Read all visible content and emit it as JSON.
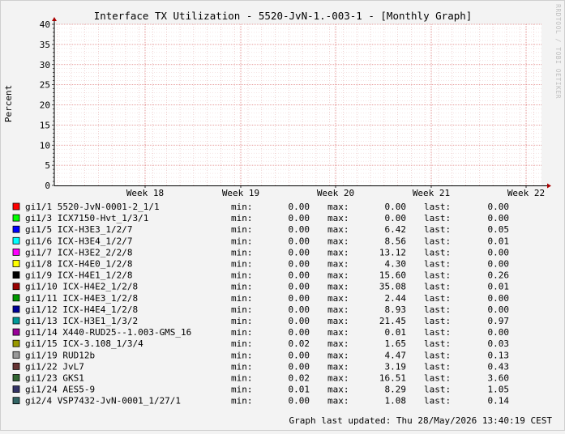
{
  "chart_data": {
    "type": "line",
    "title": "Interface TX Utilization - 5520-JvN-1.-003-1 - [Monthly Graph]",
    "ylabel": "Percent",
    "ylim": [
      0,
      40
    ],
    "yticks": [
      0,
      5,
      10,
      15,
      20,
      25,
      30,
      35,
      40
    ],
    "x_ticks": [
      "Week 18",
      "Week 19",
      "Week 20",
      "Week 21",
      "Week 22"
    ],
    "grid": true,
    "watermark": "RRDTOOL / TOBI OETIKER",
    "updated": "Graph last updated: Thu 28/May/2026 13:40:19 CEST",
    "stat_labels": {
      "min": "min:",
      "max": "max:",
      "last": "last:"
    },
    "series": [
      {
        "name": "gi1/1  5520-JvN-0001-2_1/1",
        "color": "#ff0000",
        "min": "0.00",
        "max": "0.00",
        "last": "0.00"
      },
      {
        "name": "gi1/3  ICX7150-Hvt_1/3/1",
        "color": "#00ff00",
        "min": "0.00",
        "max": "0.00",
        "last": "0.00"
      },
      {
        "name": "gi1/5  ICX-H3E3_1/2/7",
        "color": "#0000ff",
        "min": "0.00",
        "max": "6.42",
        "last": "0.05"
      },
      {
        "name": "gi1/6  ICX-H3E4_1/2/7",
        "color": "#00ffff",
        "min": "0.00",
        "max": "8.56",
        "last": "0.01"
      },
      {
        "name": "gi1/7  ICX-H3E2_2/2/8",
        "color": "#ff00ff",
        "min": "0.00",
        "max": "13.12",
        "last": "0.00"
      },
      {
        "name": "gi1/8  ICX-H4E0_1/2/8",
        "color": "#ffff00",
        "min": "0.00",
        "max": "4.30",
        "last": "0.00"
      },
      {
        "name": "gi1/9  ICX-H4E1_1/2/8",
        "color": "#000000",
        "min": "0.00",
        "max": "15.60",
        "last": "0.26"
      },
      {
        "name": "gi1/10 ICX-H4E2_1/2/8",
        "color": "#990000",
        "min": "0.00",
        "max": "35.08",
        "last": "0.01"
      },
      {
        "name": "gi1/11 ICX-H4E3_1/2/8",
        "color": "#009900",
        "min": "0.00",
        "max": "2.44",
        "last": "0.00"
      },
      {
        "name": "gi1/12 ICX-H4E4_1/2/8",
        "color": "#000099",
        "min": "0.00",
        "max": "8.93",
        "last": "0.00"
      },
      {
        "name": "gi1/13 ICX-H3E1_1/3/2",
        "color": "#009999",
        "min": "0.00",
        "max": "21.45",
        "last": "0.97"
      },
      {
        "name": "gi1/14 X440-RUD25--1.003-GMS_16",
        "color": "#990099",
        "min": "0.00",
        "max": "0.01",
        "last": "0.00"
      },
      {
        "name": "gi1/15 ICX-3.108_1/3/4",
        "color": "#999900",
        "min": "0.02",
        "max": "1.65",
        "last": "0.03"
      },
      {
        "name": "gi1/19 RUD12b",
        "color": "#999999",
        "min": "0.00",
        "max": "4.47",
        "last": "0.13"
      },
      {
        "name": "gi1/22 JvL7",
        "color": "#663333",
        "min": "0.00",
        "max": "3.19",
        "last": "0.43"
      },
      {
        "name": "gi1/23 GKS1",
        "color": "#336633",
        "min": "0.02",
        "max": "16.51",
        "last": "3.60"
      },
      {
        "name": "gi1/24 AES5-9",
        "color": "#333366",
        "min": "0.01",
        "max": "8.29",
        "last": "1.05"
      },
      {
        "name": "gi2/4  VSP7432-JvN-0001_1/27/1",
        "color": "#336666",
        "min": "0.00",
        "max": "1.08",
        "last": "0.14"
      }
    ]
  }
}
